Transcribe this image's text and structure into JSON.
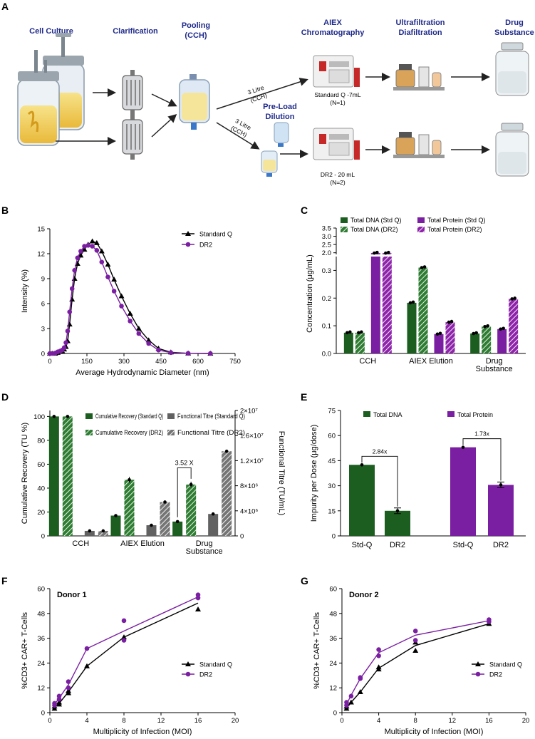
{
  "panel_labels": {
    "a": "A",
    "b": "B",
    "c": "C",
    "d": "D",
    "e": "E",
    "f": "F",
    "g": "G"
  },
  "workflow": {
    "stages": {
      "cell_culture": "Cell Culture",
      "clarification": "Clarification",
      "pooling_1": "Pooling",
      "pooling_2": "(CCH)",
      "aiex_1": "AIEX",
      "aiex_2": "Chromatography",
      "uf_1": "Ultrafiltration",
      "uf_2": "Diafiltration",
      "ds_1": "Drug",
      "ds_2": "Substance",
      "preload_1": "Pre-Load",
      "preload_2": "Dilution"
    },
    "notes": {
      "top_volume_1": "3 Litre",
      "top_volume_2": "(CCH)",
      "bottom_volume_1": "3 Litre",
      "bottom_volume_2": "(CCH)",
      "std_q_1": "Standard Q -7mL",
      "std_q_2": "(N=1)",
      "dr2_1": "DR2 - 20 mL",
      "dr2_2": "(N=2)"
    }
  },
  "chart_data": [
    {
      "id": "B",
      "type": "line",
      "xlabel": "Average  Hydrodynamic Diameter (nm)",
      "ylabel": "Intensity (%)",
      "xlim": [
        0,
        750
      ],
      "ylim": [
        0,
        15
      ],
      "xticks": [
        0,
        150,
        300,
        450,
        600,
        750
      ],
      "yticks": [
        0,
        3,
        6,
        9,
        12,
        15
      ],
      "series": [
        {
          "name": "Standard Q",
          "color": "#000000",
          "marker": "triangle",
          "x": [
            0,
            10,
            22,
            32,
            42,
            50,
            58,
            65,
            72,
            80,
            90,
            100,
            112,
            125,
            140,
            155,
            172,
            190,
            210,
            235,
            260,
            290,
            325,
            360,
            400,
            440,
            490,
            560,
            650
          ],
          "y": [
            0,
            0,
            0,
            0.1,
            0.2,
            0.3,
            0.5,
            0.8,
            1.5,
            3.5,
            6.5,
            9,
            10.8,
            11.8,
            12.5,
            13.1,
            13.5,
            13.3,
            12.3,
            10.7,
            8.9,
            6.9,
            4.8,
            3.0,
            1.6,
            0.6,
            0.15,
            0.02,
            0
          ]
        },
        {
          "name": "DR2",
          "color": "#7b1fa2",
          "marker": "circle",
          "x": [
            0,
            10,
            22,
            32,
            42,
            50,
            58,
            65,
            72,
            80,
            90,
            100,
            112,
            125,
            140,
            155,
            172,
            190,
            210,
            235,
            260,
            290,
            325,
            360,
            400,
            440,
            490,
            560,
            650
          ],
          "y": [
            0,
            0,
            0.05,
            0.2,
            0.3,
            0.4,
            0.7,
            1.3,
            2.7,
            5.0,
            7.8,
            10.0,
            11.5,
            12.3,
            12.9,
            13.0,
            12.9,
            12.4,
            11.0,
            9.2,
            7.5,
            5.7,
            3.9,
            2.4,
            1.2,
            0.4,
            0.1,
            0.02,
            0
          ]
        }
      ]
    },
    {
      "id": "C",
      "type": "bar",
      "ylabel": "Concentration (μg/mL)",
      "categories": [
        "CCH",
        "AIEX Elution",
        "Drug Substance"
      ],
      "category_lines": [
        [
          "CCH"
        ],
        [
          "AIEX Elution"
        ],
        [
          "Drug",
          "Substance"
        ]
      ],
      "ylim_lower": [
        0,
        0.35
      ],
      "ylim_upper": [
        1.9,
        3.5
      ],
      "yticks_lower": [
        "0.0",
        "0.1",
        "0.2",
        "0.3"
      ],
      "yticks_upper": [
        "2.0",
        "2.5",
        "3.0",
        "3.5"
      ],
      "series": [
        {
          "name": "Total DNA (Std Q)",
          "color": "#1b5e20",
          "hatch": false,
          "values": [
            0.075,
            0.183,
            0.072
          ]
        },
        {
          "name": "Total DNA (DR2)",
          "color": "#2e7d32",
          "hatch": true,
          "values": [
            0.075,
            0.31,
            0.097
          ]
        },
        {
          "name": "Total Protein (Std Q)",
          "color": "#7b1fa2",
          "hatch": false,
          "values": [
            1.98,
            0.07,
            0.088
          ]
        },
        {
          "name": "Total Protein (DR2)",
          "color": "#8e24aa",
          "hatch": true,
          "values": [
            1.98,
            0.113,
            0.197
          ]
        }
      ]
    },
    {
      "id": "D",
      "type": "bar",
      "ylabel": "Cumulative Recovery (TU %)",
      "y2label": "Functional Titre (TU/mL)",
      "categories": [
        "CCH",
        "AIEX Elution",
        "Drug Substance"
      ],
      "category_lines": [
        [
          "CCH"
        ],
        [
          "AIEX Elution"
        ],
        [
          "Drug",
          "Substance"
        ]
      ],
      "ylim": [
        0,
        105
      ],
      "y2lim": [
        0,
        20000000
      ],
      "yticks": [
        0,
        20,
        40,
        60,
        80,
        100
      ],
      "y2ticks": [
        "0",
        "4×10⁶",
        "8×10⁶",
        "1.2×10⁷",
        "1.6×10⁷",
        "2×10⁷"
      ],
      "annotation": "3.52 X",
      "series": [
        {
          "name": "Cumulative Recovery (Standard Q)",
          "axis": "left",
          "color": "#1b5e20",
          "hatch": false,
          "values": [
            100,
            17,
            12
          ]
        },
        {
          "name": "Cumulative Recovery (DR2)",
          "axis": "left",
          "color": "#2e7d32",
          "hatch": true,
          "values": [
            100,
            47,
            43
          ]
        },
        {
          "name": "Functional Titre (Standard Q)",
          "axis": "right",
          "color": "#616161",
          "hatch": false,
          "values": [
            800000,
            1700000,
            3500000
          ]
        },
        {
          "name": "Functional Titre (DR2)",
          "axis": "right",
          "color": "#757575",
          "hatch": true,
          "values": [
            800000,
            5400000,
            13500000
          ]
        }
      ]
    },
    {
      "id": "E",
      "type": "bar",
      "ylabel": "Impurity per Dose (μg/dose)",
      "ylim": [
        0,
        75
      ],
      "yticks": [
        0,
        15,
        30,
        45,
        60,
        75
      ],
      "legend": {
        "dna": "Total DNA",
        "protein": "Total Protein"
      },
      "groups": [
        {
          "name": "Total DNA",
          "color": "#1b5e20",
          "fold": "2.84x",
          "bars": [
            {
              "label": "Std-Q",
              "value": 42.5
            },
            {
              "label": "DR2",
              "value": 15
            }
          ]
        },
        {
          "name": "Total Protein",
          "color": "#7b1fa2",
          "fold": "1.73x",
          "bars": [
            {
              "label": "Std-Q",
              "value": 53
            },
            {
              "label": "DR2",
              "value": 30.5
            }
          ]
        }
      ]
    },
    {
      "id": "F",
      "type": "line",
      "title": "Donor 1",
      "xlabel": "Multiplicity of Infection (MOI)",
      "ylabel": "%CD3+ CAR+ T-Cells",
      "xlim": [
        0,
        20
      ],
      "ylim": [
        0,
        60
      ],
      "xticks": [
        0,
        4,
        8,
        12,
        16,
        20
      ],
      "yticks": [
        0,
        12,
        24,
        36,
        48,
        60
      ],
      "series": [
        {
          "name": "Standard Q",
          "color": "#000000",
          "marker": "triangle",
          "line_x": [
            0.5,
            1,
            2,
            4,
            8,
            16
          ],
          "line_y": [
            2.5,
            4.5,
            10,
            22.5,
            36.5,
            53
          ],
          "points_x": [
            0.5,
            0.5,
            1,
            1,
            2,
            2,
            4,
            8,
            16
          ],
          "points_y": [
            2,
            3,
            4,
            5,
            9.5,
            10.5,
            22.5,
            36.5,
            50
          ]
        },
        {
          "name": "DR2",
          "color": "#7b1fa2",
          "marker": "circle",
          "line_x": [
            0.5,
            1,
            2,
            4,
            8,
            16
          ],
          "line_y": [
            4,
            7,
            13.5,
            31,
            39.5,
            56
          ],
          "points_x": [
            0.5,
            0.5,
            1,
            1,
            2,
            2,
            4,
            8,
            8,
            16,
            16
          ],
          "points_y": [
            3.5,
            4.5,
            6.5,
            8,
            12,
            15,
            31,
            35,
            44.5,
            55.5,
            57
          ]
        }
      ]
    },
    {
      "id": "G",
      "type": "line",
      "title": "Donor 2",
      "xlabel": "Multiplicity of Infection (MOI)",
      "ylabel": "%CD3+ CAR+ T-Cells",
      "xlim": [
        0,
        20
      ],
      "ylim": [
        0,
        60
      ],
      "xticks": [
        0,
        4,
        8,
        12,
        16,
        20
      ],
      "yticks": [
        0,
        12,
        24,
        36,
        48,
        60
      ],
      "series": [
        {
          "name": "Standard Q",
          "color": "#000000",
          "marker": "triangle",
          "line_x": [
            0.5,
            1,
            2,
            4,
            8,
            16
          ],
          "line_y": [
            2,
            5,
            10,
            21.5,
            32.5,
            43
          ],
          "points_x": [
            0.5,
            0.5,
            1,
            2,
            4,
            4,
            8,
            8,
            16
          ],
          "points_y": [
            2,
            3,
            5,
            10,
            21,
            22,
            30,
            34,
            43
          ]
        },
        {
          "name": "DR2",
          "color": "#7b1fa2",
          "marker": "circle",
          "line_x": [
            0.5,
            1,
            2,
            4,
            8,
            16
          ],
          "line_y": [
            4,
            8.5,
            16.5,
            29,
            37.5,
            44.5
          ],
          "points_x": [
            0.5,
            0.5,
            1,
            2,
            2,
            4,
            4,
            8,
            8,
            16,
            16
          ],
          "points_y": [
            3.5,
            5,
            8,
            16.5,
            17,
            27.5,
            30.5,
            35,
            39.5,
            44,
            45
          ]
        }
      ]
    }
  ]
}
